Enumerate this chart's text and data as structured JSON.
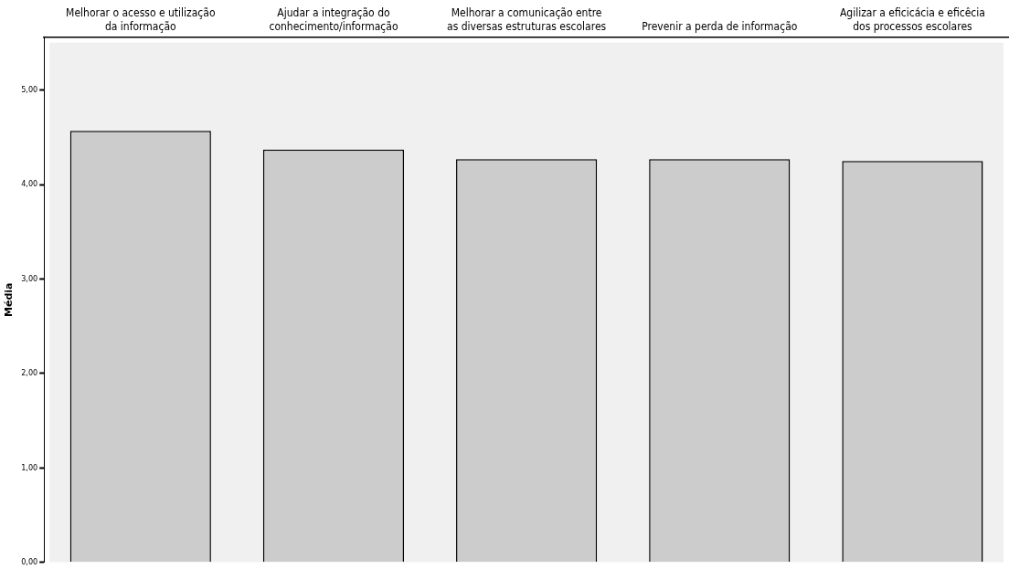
{
  "chart_data": {
    "type": "bar",
    "ylabel": "Média",
    "categories": [
      "Melhorar o acesso e utilização\nda informação",
      "Ajudar a integração do\nconhecimento/informação",
      "Melhorar a comunicação entre\nas diversas estruturas escolares",
      "Prevenir a perda de informação",
      "Agilizar a eficicácia e eficêcia\ndos processos escolares"
    ],
    "values": [
      4.57,
      4.37,
      4.27,
      4.27,
      4.25
    ],
    "color": "#cccccc",
    "ylim": [
      0,
      5.56
    ],
    "yticks": [
      {
        "value": 0,
        "label": "0,00"
      },
      {
        "value": 1,
        "label": "1,00"
      },
      {
        "value": 2,
        "label": "2,00"
      },
      {
        "value": 3,
        "label": "3,00"
      },
      {
        "value": 4,
        "label": "4,00"
      },
      {
        "value": 5,
        "label": "5,00"
      }
    ],
    "grid": false,
    "legend": false
  }
}
